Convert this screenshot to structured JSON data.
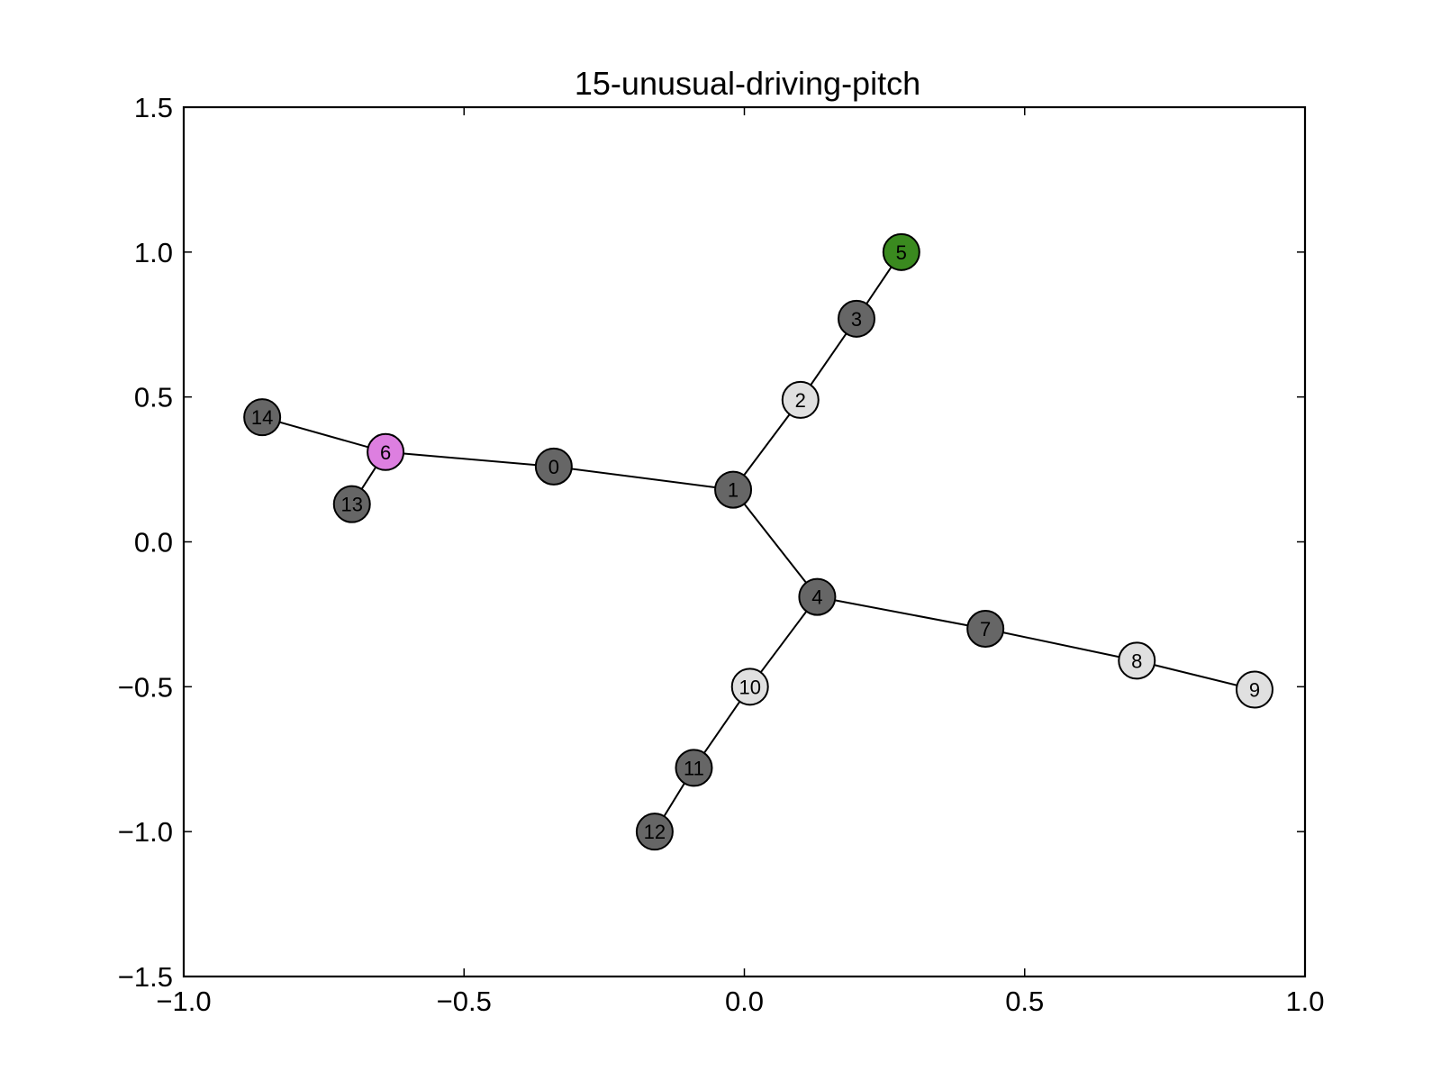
{
  "chart_data": {
    "type": "network-graph",
    "title": "15-unusual-driving-pitch",
    "xlim": [
      -1.0,
      1.0
    ],
    "ylim": [
      -1.5,
      1.5
    ],
    "x_ticks": [
      -1.0,
      -0.5,
      0.0,
      0.5,
      1.0
    ],
    "y_ticks": [
      -1.5,
      -1.0,
      -0.5,
      0.0,
      0.5,
      1.0,
      1.5
    ],
    "x_tick_labels": [
      "−1.0",
      "−0.5",
      "0.0",
      "0.5",
      "1.0"
    ],
    "y_tick_labels": [
      "−1.5",
      "−1.0",
      "−0.5",
      "0.0",
      "0.5",
      "1.0",
      "1.5"
    ],
    "grid": false,
    "colors": {
      "dark": "#666666",
      "light": "#e0e0e0",
      "green": "#3a8a1f",
      "pink": "#dd7fe0",
      "edge": "#000000"
    },
    "nodes": [
      {
        "id": "0",
        "x": -0.34,
        "y": 0.26,
        "color": "dark"
      },
      {
        "id": "1",
        "x": -0.02,
        "y": 0.18,
        "color": "dark"
      },
      {
        "id": "2",
        "x": 0.1,
        "y": 0.49,
        "color": "light"
      },
      {
        "id": "3",
        "x": 0.2,
        "y": 0.77,
        "color": "dark"
      },
      {
        "id": "4",
        "x": 0.13,
        "y": -0.19,
        "color": "dark"
      },
      {
        "id": "5",
        "x": 0.28,
        "y": 1.0,
        "color": "green"
      },
      {
        "id": "6",
        "x": -0.64,
        "y": 0.31,
        "color": "pink"
      },
      {
        "id": "7",
        "x": 0.43,
        "y": -0.3,
        "color": "dark"
      },
      {
        "id": "8",
        "x": 0.7,
        "y": -0.41,
        "color": "light"
      },
      {
        "id": "9",
        "x": 0.91,
        "y": -0.51,
        "color": "light"
      },
      {
        "id": "10",
        "x": 0.01,
        "y": -0.5,
        "color": "light"
      },
      {
        "id": "11",
        "x": -0.09,
        "y": -0.78,
        "color": "dark"
      },
      {
        "id": "12",
        "x": -0.16,
        "y": -1.0,
        "color": "dark"
      },
      {
        "id": "13",
        "x": -0.7,
        "y": 0.13,
        "color": "dark"
      },
      {
        "id": "14",
        "x": -0.86,
        "y": 0.43,
        "color": "dark"
      }
    ],
    "edges": [
      [
        "14",
        "6"
      ],
      [
        "6",
        "13"
      ],
      [
        "6",
        "0"
      ],
      [
        "0",
        "1"
      ],
      [
        "1",
        "2"
      ],
      [
        "2",
        "3"
      ],
      [
        "3",
        "5"
      ],
      [
        "1",
        "4"
      ],
      [
        "4",
        "7"
      ],
      [
        "7",
        "8"
      ],
      [
        "8",
        "9"
      ],
      [
        "4",
        "10"
      ],
      [
        "10",
        "11"
      ],
      [
        "11",
        "12"
      ]
    ]
  }
}
